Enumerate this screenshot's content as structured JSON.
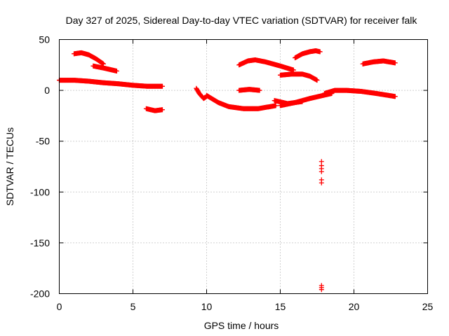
{
  "chart_data": {
    "type": "scatter",
    "title": "Day 327 of 2025, Sidereal Day-to-day VTEC variation (SDTVAR) for receiver falk",
    "xlabel": "GPS time / hours",
    "ylabel": "SDTVAR / TECUs",
    "xlim": [
      0,
      25
    ],
    "ylim": [
      -200,
      50
    ],
    "xticks": [
      0,
      5,
      10,
      15,
      20,
      25
    ],
    "yticks": [
      -200,
      -150,
      -100,
      -50,
      0,
      50
    ],
    "grid": true,
    "marker": "plus",
    "color": "#ff0000",
    "segments": [
      {
        "x_start": 0.0,
        "x_end": 7.0,
        "points": [
          [
            0.0,
            10
          ],
          [
            1.0,
            10
          ],
          [
            2.0,
            9
          ],
          [
            3.0,
            7.5
          ],
          [
            4.0,
            6.5
          ],
          [
            5.0,
            5
          ],
          [
            6.0,
            4
          ],
          [
            7.0,
            4
          ]
        ]
      },
      {
        "x_start": 1.0,
        "x_end": 3.0,
        "points": [
          [
            1.0,
            36
          ],
          [
            1.5,
            37
          ],
          [
            2.0,
            35
          ],
          [
            2.5,
            31
          ],
          [
            3.0,
            26
          ]
        ]
      },
      {
        "x_start": 2.3,
        "x_end": 3.9,
        "points": [
          [
            2.3,
            24
          ],
          [
            3.0,
            22
          ],
          [
            3.9,
            19
          ]
        ]
      },
      {
        "x_start": 5.9,
        "x_end": 7.0,
        "points": [
          [
            5.9,
            -18
          ],
          [
            6.5,
            -20
          ],
          [
            7.0,
            -19
          ]
        ]
      },
      {
        "x_start": 9.3,
        "x_end": 10.0,
        "points": [
          [
            9.3,
            2
          ],
          [
            9.5,
            -3
          ],
          [
            9.8,
            -8
          ],
          [
            10.0,
            -6
          ]
        ]
      },
      {
        "x_start": 10.0,
        "x_end": 14.7,
        "points": [
          [
            10.0,
            -5
          ],
          [
            10.8,
            -12
          ],
          [
            11.5,
            -16
          ],
          [
            12.5,
            -18
          ],
          [
            13.5,
            -18
          ],
          [
            14.7,
            -15
          ]
        ]
      },
      {
        "x_start": 12.2,
        "x_end": 13.6,
        "points": [
          [
            12.2,
            0
          ],
          [
            12.9,
            1
          ],
          [
            13.6,
            0
          ]
        ]
      },
      {
        "x_start": 12.2,
        "x_end": 15.9,
        "points": [
          [
            12.2,
            25
          ],
          [
            12.8,
            29
          ],
          [
            13.3,
            30
          ],
          [
            14.0,
            28
          ],
          [
            15.0,
            24
          ],
          [
            15.9,
            20
          ]
        ]
      },
      {
        "x_start": 14.6,
        "x_end": 16.5,
        "points": [
          [
            14.6,
            -10
          ],
          [
            15.5,
            -13
          ],
          [
            16.5,
            -11
          ]
        ]
      },
      {
        "x_start": 15.0,
        "x_end": 17.0,
        "points": [
          [
            15.0,
            -15
          ],
          [
            16.0,
            -12
          ],
          [
            17.0,
            -8
          ]
        ]
      },
      {
        "x_start": 15.0,
        "x_end": 17.5,
        "points": [
          [
            15.0,
            15
          ],
          [
            15.8,
            16
          ],
          [
            16.5,
            16
          ],
          [
            17.0,
            14
          ],
          [
            17.5,
            10
          ]
        ]
      },
      {
        "x_start": 16.0,
        "x_end": 17.7,
        "points": [
          [
            16.0,
            32
          ],
          [
            16.5,
            36
          ],
          [
            17.0,
            38
          ],
          [
            17.4,
            39
          ],
          [
            17.7,
            38
          ]
        ]
      },
      {
        "x_start": 17.0,
        "x_end": 18.5,
        "points": [
          [
            17.0,
            -8
          ],
          [
            17.6,
            -6
          ],
          [
            18.5,
            -3
          ]
        ]
      },
      {
        "x_start": 18.0,
        "x_end": 22.8,
        "points": [
          [
            18.0,
            -3
          ],
          [
            18.7,
            0
          ],
          [
            19.5,
            0
          ],
          [
            20.5,
            -1
          ],
          [
            21.5,
            -3
          ],
          [
            22.8,
            -6
          ]
        ]
      },
      {
        "x_start": 20.6,
        "x_end": 22.8,
        "points": [
          [
            20.6,
            26
          ],
          [
            21.3,
            28
          ],
          [
            22.0,
            29
          ],
          [
            22.8,
            27
          ]
        ]
      }
    ],
    "outliers": [
      [
        17.8,
        -70
      ],
      [
        17.8,
        -74
      ],
      [
        17.8,
        -77
      ],
      [
        17.8,
        -80
      ],
      [
        17.8,
        -88
      ],
      [
        17.8,
        -91
      ],
      [
        17.8,
        -192
      ],
      [
        17.8,
        -194
      ],
      [
        17.8,
        -196
      ]
    ]
  }
}
